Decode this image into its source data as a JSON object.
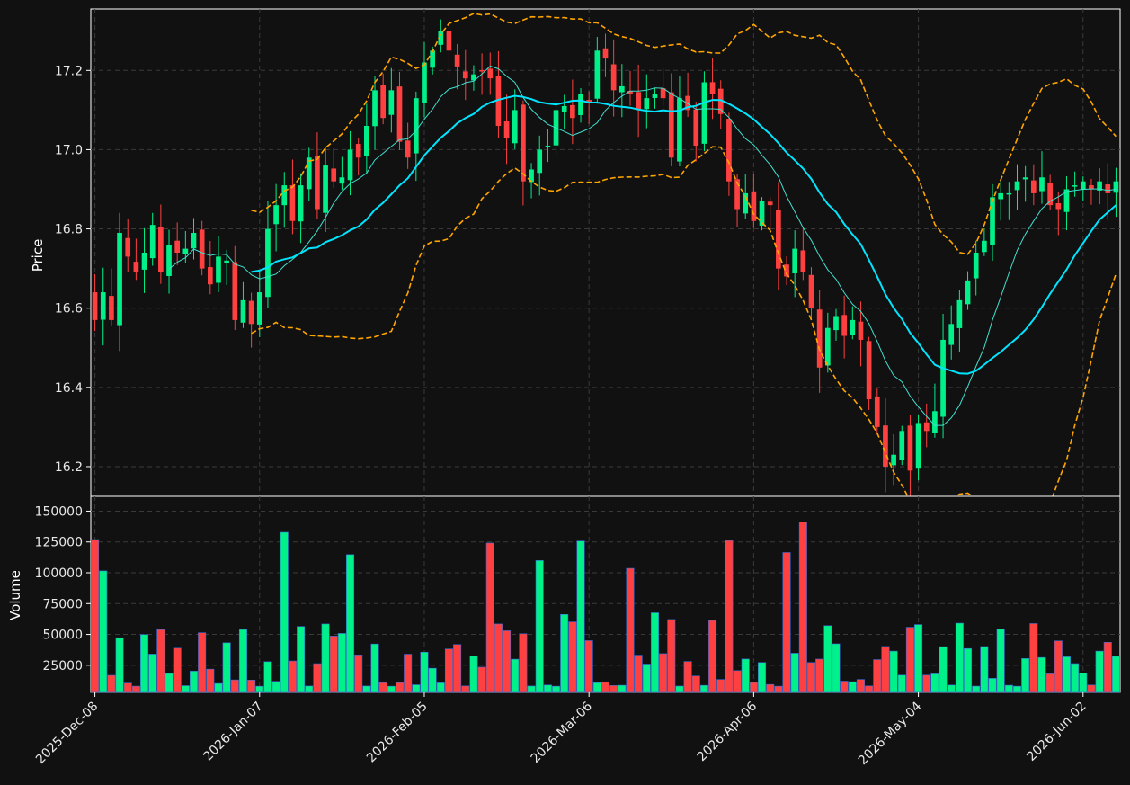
{
  "chart_data": {
    "type": "candlestick",
    "panels": {
      "price": {
        "ylabel": "Price",
        "yticks": [
          16.2,
          16.4,
          16.6,
          16.8,
          17.0,
          17.2
        ],
        "ylim": [
          16.125,
          17.355
        ]
      },
      "volume": {
        "ylabel": "Volume",
        "yticks": [
          25000,
          50000,
          75000,
          100000,
          125000,
          150000
        ],
        "ylim": [
          3000,
          162000
        ]
      }
    },
    "xtick_labels": [
      "2025-Dec-08",
      "2026-Jan-07",
      "2026-Feb-05",
      "2026-Mar-06",
      "2026-Apr-06",
      "2026-May-04",
      "2026-Jun-02"
    ],
    "xtick_positions": [
      0,
      20,
      40,
      60,
      80,
      100,
      120
    ],
    "x_range": [
      -0.5,
      124.5
    ],
    "grid": true,
    "colors": {
      "background": "#111111",
      "up": "#00f08a",
      "down": "#ff4040",
      "sma_fast": "#40e0d0",
      "sma_slow": "#00e5ff",
      "bollinger": "#ffa500",
      "grid": "#3a3a3a",
      "axis": "#ffffff"
    },
    "overlays": [
      "sma-fast",
      "sma-slow",
      "bollinger-upper",
      "bollinger-lower"
    ],
    "close": [
      16.57,
      16.64,
      16.57,
      16.79,
      16.73,
      16.69,
      16.74,
      16.81,
      16.69,
      16.76,
      16.74,
      16.75,
      16.79,
      16.7,
      16.66,
      16.73,
      16.72,
      16.57,
      16.62,
      16.56,
      16.64,
      16.8,
      16.86,
      16.91,
      16.82,
      16.91,
      16.98,
      16.85,
      16.96,
      16.92,
      16.93,
      17.0,
      16.98,
      17.06,
      17.15,
      17.08,
      17.15,
      17.02,
      16.98,
      17.13,
      17.22,
      17.25,
      17.3,
      17.25,
      17.21,
      17.18,
      17.19,
      17.2,
      17.18,
      17.06,
      17.03,
      17.1,
      16.92,
      16.95,
      17.0,
      17.01,
      17.1,
      17.11,
      17.08,
      17.14,
      17.12,
      17.25,
      17.23,
      17.15,
      17.16,
      17.14,
      17.1,
      17.13,
      17.14,
      17.13,
      16.98,
      17.13,
      17.1,
      17.01,
      17.17,
      17.14,
      17.09,
      16.92,
      16.85,
      16.89,
      16.82,
      16.87,
      16.86,
      16.7,
      16.68,
      16.75,
      16.69,
      16.6,
      16.45,
      16.55,
      16.58,
      16.53,
      16.57,
      16.52,
      16.37,
      16.3,
      16.2,
      16.23,
      16.29,
      16.19,
      16.31,
      16.29,
      16.34,
      16.52,
      16.56,
      16.62,
      16.67,
      16.74,
      16.77,
      16.88,
      16.89,
      16.89,
      16.92,
      16.93,
      16.89,
      16.93,
      16.86,
      16.85,
      16.9,
      16.91,
      16.92,
      16.9,
      16.92,
      16.89,
      16.92
    ]
  }
}
